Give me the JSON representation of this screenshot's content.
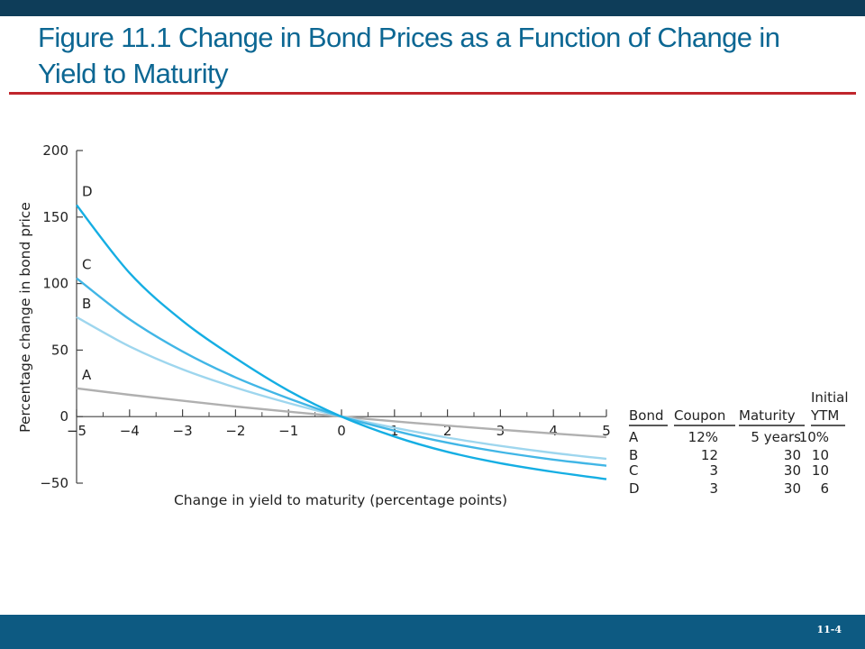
{
  "slide": {
    "title": "Figure 11.1 Change in Bond Prices as a Function of Change in Yield to Maturity",
    "page_number": "11-4"
  },
  "chart_data": {
    "type": "line",
    "title": "",
    "xlabel": "Change in yield to maturity (percentage points)",
    "ylabel": "Percentage change in bond price",
    "xlim": [
      -5,
      5
    ],
    "ylim": [
      -50,
      200
    ],
    "x_ticks": [
      -5,
      -4,
      -3,
      -2,
      -1,
      0,
      1,
      2,
      3,
      4,
      5
    ],
    "x_tick_labels": [
      "−5",
      "−4",
      "−3",
      "−2",
      "−1",
      "0",
      "1",
      "2",
      "3",
      "4",
      "5"
    ],
    "y_ticks": [
      -50,
      0,
      50,
      100,
      150,
      200
    ],
    "y_tick_labels": [
      "−50",
      "0",
      "50",
      "100",
      "150",
      "200"
    ],
    "grid": false,
    "series": [
      {
        "name": "A",
        "color": "#b0b0b0",
        "x": [
          -5,
          -4,
          -3,
          -2,
          -1,
          0,
          1,
          2,
          3,
          4,
          5
        ],
        "y": [
          21.3,
          16.4,
          11.9,
          7.6,
          3.7,
          0,
          -3.5,
          -6.8,
          -9.8,
          -12.7,
          -15.4
        ]
      },
      {
        "name": "B",
        "color": "#9ed6ee",
        "x": [
          -5,
          -4,
          -3,
          -2,
          -1,
          0,
          1,
          2,
          3,
          4,
          5
        ],
        "y": [
          74.8,
          52.8,
          35.5,
          21.8,
          10.2,
          0,
          -8.4,
          -15.8,
          -22.0,
          -27.3,
          -31.8
        ]
      },
      {
        "name": "C",
        "color": "#41b6e6",
        "x": [
          -5,
          -4,
          -3,
          -2,
          -1,
          0,
          1,
          2,
          3,
          4,
          5
        ],
        "y": [
          104.0,
          73.1,
          49.0,
          29.5,
          13.7,
          0,
          -10.6,
          -19.6,
          -26.6,
          -32.3,
          -36.9
        ]
      },
      {
        "name": "D",
        "color": "#15aee3",
        "x": [
          -5,
          -4,
          -3,
          -2,
          -1,
          0,
          1,
          2,
          3,
          4,
          5
        ],
        "y": [
          159.0,
          108.0,
          72.0,
          44.0,
          19.5,
          0,
          -15.0,
          -26.5,
          -35.0,
          -41.5,
          -47.0
        ]
      }
    ],
    "table": {
      "header_top": "Initial",
      "columns": [
        "Bond",
        "Coupon",
        "Maturity",
        "YTM"
      ],
      "rows": [
        [
          "A",
          "12%",
          "5 years",
          "10%"
        ],
        [
          "B",
          "12",
          "30",
          "10"
        ],
        [
          "C",
          "3",
          "30",
          "10"
        ],
        [
          "D",
          "3",
          "30",
          "6"
        ]
      ]
    }
  }
}
